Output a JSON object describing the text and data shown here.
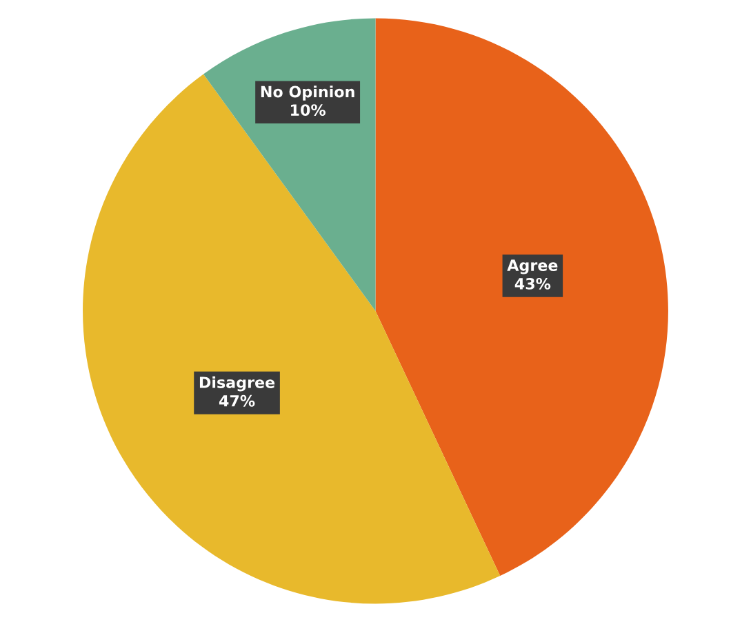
{
  "chart_data": {
    "type": "pie",
    "categories": [
      "Agree",
      "Disagree",
      "No Opinion"
    ],
    "values": [
      43,
      47,
      10
    ],
    "colors": [
      "#e8621a",
      "#e8b92c",
      "#6aaf8f"
    ],
    "value_labels": [
      "43%",
      "47%",
      "10%"
    ],
    "legend": false
  }
}
